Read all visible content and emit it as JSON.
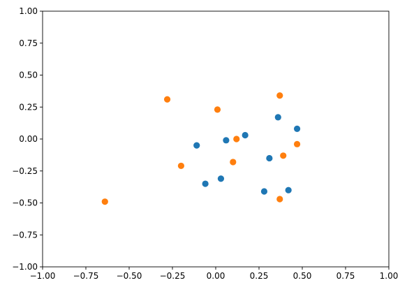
{
  "chart_data": {
    "type": "scatter",
    "xlim": [
      -1.0,
      1.0
    ],
    "ylim": [
      -1.0,
      1.0
    ],
    "xticks": [
      -1.0,
      -0.75,
      -0.5,
      -0.25,
      0.0,
      0.25,
      0.5,
      0.75,
      1.0
    ],
    "yticks": [
      -1.0,
      -0.75,
      -0.5,
      -0.25,
      0.0,
      0.25,
      0.5,
      0.75,
      1.0
    ],
    "xtick_labels": [
      "−1.00",
      "−0.75",
      "−0.50",
      "−0.25",
      "0.00",
      "0.25",
      "0.50",
      "0.75",
      "1.00"
    ],
    "ytick_labels": [
      "−1.00",
      "−0.75",
      "−0.50",
      "−0.25",
      "0.00",
      "0.25",
      "0.50",
      "0.75",
      "1.00"
    ],
    "grid": false,
    "legend": "none",
    "series": [
      {
        "color": "#1f77b4",
        "points": [
          {
            "x": -0.11,
            "y": -0.05
          },
          {
            "x": -0.06,
            "y": -0.35
          },
          {
            "x": 0.03,
            "y": -0.31
          },
          {
            "x": 0.06,
            "y": -0.01
          },
          {
            "x": 0.17,
            "y": 0.03
          },
          {
            "x": 0.28,
            "y": -0.41
          },
          {
            "x": 0.31,
            "y": -0.15
          },
          {
            "x": 0.36,
            "y": 0.17
          },
          {
            "x": 0.42,
            "y": -0.4
          },
          {
            "x": 0.47,
            "y": 0.08
          }
        ]
      },
      {
        "color": "#ff7f0e",
        "points": [
          {
            "x": -0.64,
            "y": -0.49
          },
          {
            "x": -0.28,
            "y": 0.31
          },
          {
            "x": -0.2,
            "y": -0.21
          },
          {
            "x": 0.01,
            "y": 0.23
          },
          {
            "x": 0.1,
            "y": -0.18
          },
          {
            "x": 0.12,
            "y": 0.0
          },
          {
            "x": 0.37,
            "y": 0.34
          },
          {
            "x": 0.37,
            "y": -0.47
          },
          {
            "x": 0.39,
            "y": -0.13
          },
          {
            "x": 0.47,
            "y": -0.04
          }
        ]
      }
    ]
  }
}
